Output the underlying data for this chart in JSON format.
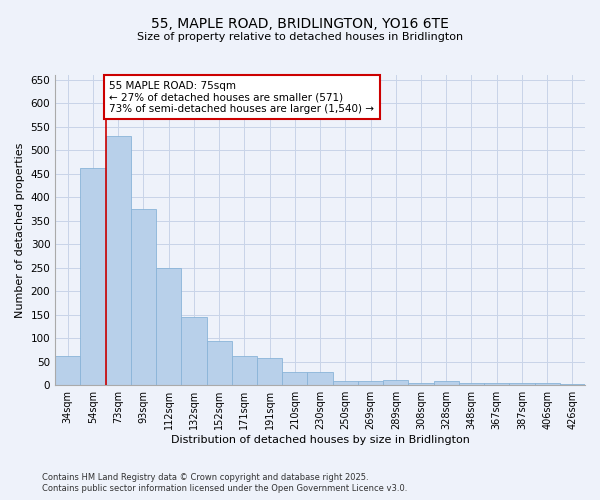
{
  "title1": "55, MAPLE ROAD, BRIDLINGTON, YO16 6TE",
  "title2": "Size of property relative to detached houses in Bridlington",
  "xlabel": "Distribution of detached houses by size in Bridlington",
  "ylabel": "Number of detached properties",
  "categories": [
    "34sqm",
    "54sqm",
    "73sqm",
    "93sqm",
    "112sqm",
    "132sqm",
    "152sqm",
    "171sqm",
    "191sqm",
    "210sqm",
    "230sqm",
    "250sqm",
    "269sqm",
    "289sqm",
    "308sqm",
    "328sqm",
    "348sqm",
    "367sqm",
    "387sqm",
    "406sqm",
    "426sqm"
  ],
  "values": [
    63,
    462,
    530,
    375,
    250,
    145,
    93,
    63,
    57,
    28,
    28,
    10,
    10,
    12,
    5,
    8,
    5,
    4,
    5,
    4,
    3
  ],
  "bar_color": "#b8d0ea",
  "bar_edge_color": "#8ab4d8",
  "grid_color": "#c8d4e8",
  "vline_color": "#cc0000",
  "vline_index": 2,
  "annotation_text1": "55 MAPLE ROAD: 75sqm",
  "annotation_text2": "← 27% of detached houses are smaller (571)",
  "annotation_text3": "73% of semi-detached houses are larger (1,540) →",
  "annotation_box_color": "#ffffff",
  "annotation_border_color": "#cc0000",
  "ylim": [
    0,
    660
  ],
  "yticks": [
    0,
    50,
    100,
    150,
    200,
    250,
    300,
    350,
    400,
    450,
    500,
    550,
    600,
    650
  ],
  "footer1": "Contains HM Land Registry data © Crown copyright and database right 2025.",
  "footer2": "Contains public sector information licensed under the Open Government Licence v3.0.",
  "background_color": "#eef2fa"
}
